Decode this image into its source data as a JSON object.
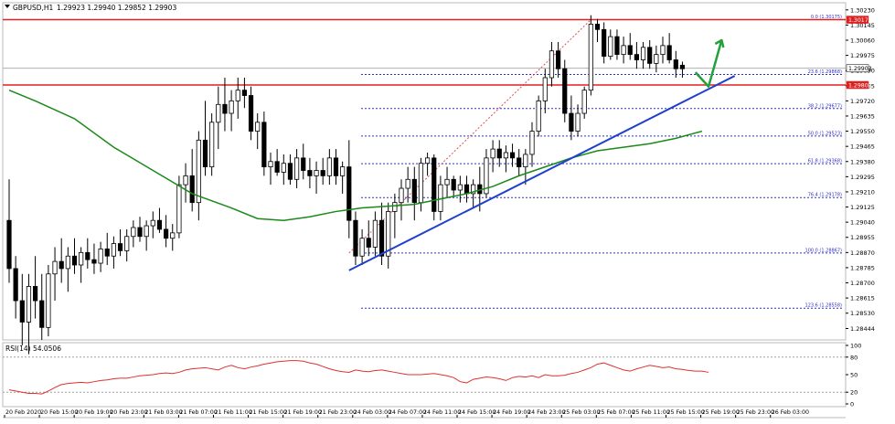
{
  "header": {
    "symbol": "GBPUSD,H1",
    "ohlc": "1.29923 1.29940 1.29852 1.29903"
  },
  "rsi_label": "RSI(14) 54.0506",
  "colors": {
    "background": "#ffffff",
    "grid": "#b8b8b8",
    "candle": "#000000",
    "ma": "#1a8a1a",
    "trendline": "#1f3fcf",
    "resistance": "#e02020",
    "fib": "#3030c8",
    "fib_diag": "#e05050",
    "rsi": "#e03030",
    "arrow": "#22a03a",
    "price_tag": "#e02020"
  },
  "chart_data": {
    "type": "candlestick",
    "title": "GBPUSD,H1",
    "ylim": [
      1.2838,
      1.3027
    ],
    "y_ticks": [
      1.3023,
      1.30145,
      1.3006,
      1.29975,
      1.2989,
      1.29805,
      1.2972,
      1.29635,
      1.2955,
      1.29465,
      1.2938,
      1.29295,
      1.2921,
      1.29125,
      1.2904,
      1.28955,
      1.2887,
      1.28785,
      1.287,
      1.28615,
      1.2853,
      1.28444
    ],
    "y_tick_labels": [
      "1.30230",
      "1.30145",
      "1.30060",
      "1.29975",
      "1.29890",
      "1.29805",
      "1.29720",
      "1.29635",
      "1.29550",
      "1.29465",
      "1.29380",
      "1.29295",
      "1.29210",
      "1.29125",
      "1.29040",
      "1.28955",
      "1.28870",
      "1.28785",
      "1.28700",
      "1.28615",
      "1.28530",
      "1.28444"
    ],
    "x_tick_labels": [
      "20 Feb 2020",
      "20 Feb 15:00",
      "20 Feb 19:00",
      "20 Feb 23:00",
      "21 Feb 03:00",
      "21 Feb 07:00",
      "21 Feb 11:00",
      "21 Feb 15:00",
      "21 Feb 19:00",
      "21 Feb 23:00",
      "24 Feb 03:00",
      "24 Feb 07:00",
      "24 Feb 11:00",
      "24 Feb 15:00",
      "24 Feb 19:00",
      "24 Feb 23:00",
      "25 Feb 03:00",
      "25 Feb 07:00",
      "25 Feb 11:00",
      "25 Feb 15:00",
      "25 Feb 19:00",
      "25 Feb 23:00",
      "26 Feb 03:00"
    ],
    "candles": [
      {
        "o": 1.2905,
        "h": 1.2928,
        "l": 1.287,
        "c": 1.2878
      },
      {
        "o": 1.2878,
        "h": 1.2885,
        "l": 1.285,
        "c": 1.286
      },
      {
        "o": 1.286,
        "h": 1.2875,
        "l": 1.2835,
        "c": 1.2848
      },
      {
        "o": 1.2848,
        "h": 1.2875,
        "l": 1.283,
        "c": 1.2868
      },
      {
        "o": 1.2868,
        "h": 1.2885,
        "l": 1.285,
        "c": 1.286
      },
      {
        "o": 1.286,
        "h": 1.2875,
        "l": 1.2838,
        "c": 1.2845
      },
      {
        "o": 1.2845,
        "h": 1.288,
        "l": 1.284,
        "c": 1.2875
      },
      {
        "o": 1.2875,
        "h": 1.289,
        "l": 1.286,
        "c": 1.2882
      },
      {
        "o": 1.2882,
        "h": 1.2895,
        "l": 1.287,
        "c": 1.2878
      },
      {
        "o": 1.2878,
        "h": 1.289,
        "l": 1.2865,
        "c": 1.2885
      },
      {
        "o": 1.2885,
        "h": 1.2895,
        "l": 1.2875,
        "c": 1.288
      },
      {
        "o": 1.288,
        "h": 1.289,
        "l": 1.287,
        "c": 1.2887
      },
      {
        "o": 1.2887,
        "h": 1.2895,
        "l": 1.2878,
        "c": 1.2883
      },
      {
        "o": 1.2883,
        "h": 1.2892,
        "l": 1.2875,
        "c": 1.2881
      },
      {
        "o": 1.2881,
        "h": 1.2893,
        "l": 1.2876,
        "c": 1.2889
      },
      {
        "o": 1.2889,
        "h": 1.2898,
        "l": 1.288,
        "c": 1.2885
      },
      {
        "o": 1.2885,
        "h": 1.2896,
        "l": 1.2878,
        "c": 1.2892
      },
      {
        "o": 1.2892,
        "h": 1.29,
        "l": 1.2885,
        "c": 1.2888
      },
      {
        "o": 1.2888,
        "h": 1.29,
        "l": 1.2882,
        "c": 1.2896
      },
      {
        "o": 1.2896,
        "h": 1.2905,
        "l": 1.289,
        "c": 1.2901
      },
      {
        "o": 1.2901,
        "h": 1.2907,
        "l": 1.2893,
        "c": 1.2896
      },
      {
        "o": 1.2896,
        "h": 1.2905,
        "l": 1.2888,
        "c": 1.2902
      },
      {
        "o": 1.2902,
        "h": 1.291,
        "l": 1.2895,
        "c": 1.2905
      },
      {
        "o": 1.2905,
        "h": 1.2912,
        "l": 1.2898,
        "c": 1.29
      },
      {
        "o": 1.29,
        "h": 1.2908,
        "l": 1.289,
        "c": 1.2895
      },
      {
        "o": 1.2895,
        "h": 1.2903,
        "l": 1.2888,
        "c": 1.2898
      },
      {
        "o": 1.2898,
        "h": 1.293,
        "l": 1.2895,
        "c": 1.2925
      },
      {
        "o": 1.2925,
        "h": 1.2937,
        "l": 1.2915,
        "c": 1.293
      },
      {
        "o": 1.293,
        "h": 1.2945,
        "l": 1.291,
        "c": 1.2915
      },
      {
        "o": 1.2915,
        "h": 1.2955,
        "l": 1.2905,
        "c": 1.295
      },
      {
        "o": 1.295,
        "h": 1.2972,
        "l": 1.293,
        "c": 1.2935
      },
      {
        "o": 1.2935,
        "h": 1.2965,
        "l": 1.293,
        "c": 1.296
      },
      {
        "o": 1.296,
        "h": 1.298,
        "l": 1.2945,
        "c": 1.297
      },
      {
        "o": 1.297,
        "h": 1.2985,
        "l": 1.2955,
        "c": 1.2965
      },
      {
        "o": 1.2965,
        "h": 1.2978,
        "l": 1.2955,
        "c": 1.2972
      },
      {
        "o": 1.2972,
        "h": 1.2985,
        "l": 1.2962,
        "c": 1.2978
      },
      {
        "o": 1.2978,
        "h": 1.2985,
        "l": 1.2968,
        "c": 1.2975
      },
      {
        "o": 1.2975,
        "h": 1.298,
        "l": 1.295,
        "c": 1.2955
      },
      {
        "o": 1.2955,
        "h": 1.2965,
        "l": 1.2945,
        "c": 1.296
      },
      {
        "o": 1.296,
        "h": 1.2966,
        "l": 1.293,
        "c": 1.2935
      },
      {
        "o": 1.2935,
        "h": 1.2943,
        "l": 1.2925,
        "c": 1.2938
      },
      {
        "o": 1.2938,
        "h": 1.2945,
        "l": 1.293,
        "c": 1.2932
      },
      {
        "o": 1.2932,
        "h": 1.2942,
        "l": 1.2925,
        "c": 1.2937
      },
      {
        "o": 1.2937,
        "h": 1.2942,
        "l": 1.2925,
        "c": 1.2928
      },
      {
        "o": 1.2928,
        "h": 1.2945,
        "l": 1.2923,
        "c": 1.294
      },
      {
        "o": 1.294,
        "h": 1.2948,
        "l": 1.2928,
        "c": 1.2933
      },
      {
        "o": 1.2933,
        "h": 1.294,
        "l": 1.2923,
        "c": 1.293
      },
      {
        "o": 1.293,
        "h": 1.2938,
        "l": 1.292,
        "c": 1.2933
      },
      {
        "o": 1.2933,
        "h": 1.294,
        "l": 1.2925,
        "c": 1.293
      },
      {
        "o": 1.293,
        "h": 1.2945,
        "l": 1.2925,
        "c": 1.294
      },
      {
        "o": 1.294,
        "h": 1.2945,
        "l": 1.2925,
        "c": 1.293
      },
      {
        "o": 1.293,
        "h": 1.2938,
        "l": 1.292,
        "c": 1.2935
      },
      {
        "o": 1.2935,
        "h": 1.295,
        "l": 1.2895,
        "c": 1.2905
      },
      {
        "o": 1.2905,
        "h": 1.291,
        "l": 1.288,
        "c": 1.2885
      },
      {
        "o": 1.2885,
        "h": 1.29,
        "l": 1.288,
        "c": 1.2895
      },
      {
        "o": 1.2895,
        "h": 1.2905,
        "l": 1.2885,
        "c": 1.289
      },
      {
        "o": 1.289,
        "h": 1.291,
        "l": 1.2885,
        "c": 1.2905
      },
      {
        "o": 1.2905,
        "h": 1.2915,
        "l": 1.288,
        "c": 1.2885
      },
      {
        "o": 1.2885,
        "h": 1.2915,
        "l": 1.2878,
        "c": 1.291
      },
      {
        "o": 1.291,
        "h": 1.292,
        "l": 1.2895,
        "c": 1.2915
      },
      {
        "o": 1.2915,
        "h": 1.2928,
        "l": 1.2905,
        "c": 1.2923
      },
      {
        "o": 1.2923,
        "h": 1.2935,
        "l": 1.2915,
        "c": 1.2928
      },
      {
        "o": 1.2928,
        "h": 1.2935,
        "l": 1.2905,
        "c": 1.2915
      },
      {
        "o": 1.2915,
        "h": 1.294,
        "l": 1.291,
        "c": 1.2937
      },
      {
        "o": 1.2937,
        "h": 1.2943,
        "l": 1.293,
        "c": 1.294
      },
      {
        "o": 1.294,
        "h": 1.2942,
        "l": 1.2905,
        "c": 1.291
      },
      {
        "o": 1.291,
        "h": 1.293,
        "l": 1.2905,
        "c": 1.2925
      },
      {
        "o": 1.2925,
        "h": 1.2935,
        "l": 1.2918,
        "c": 1.2928
      },
      {
        "o": 1.2928,
        "h": 1.293,
        "l": 1.2918,
        "c": 1.2922
      },
      {
        "o": 1.2922,
        "h": 1.293,
        "l": 1.2915,
        "c": 1.2925
      },
      {
        "o": 1.2925,
        "h": 1.293,
        "l": 1.2915,
        "c": 1.292
      },
      {
        "o": 1.292,
        "h": 1.2928,
        "l": 1.2912,
        "c": 1.2925
      },
      {
        "o": 1.2925,
        "h": 1.2935,
        "l": 1.291,
        "c": 1.292
      },
      {
        "o": 1.292,
        "h": 1.2945,
        "l": 1.2918,
        "c": 1.294
      },
      {
        "o": 1.294,
        "h": 1.295,
        "l": 1.2932,
        "c": 1.2945
      },
      {
        "o": 1.2945,
        "h": 1.295,
        "l": 1.2935,
        "c": 1.294
      },
      {
        "o": 1.294,
        "h": 1.2947,
        "l": 1.2932,
        "c": 1.2943
      },
      {
        "o": 1.2943,
        "h": 1.2948,
        "l": 1.2935,
        "c": 1.294
      },
      {
        "o": 1.294,
        "h": 1.2945,
        "l": 1.293,
        "c": 1.2935
      },
      {
        "o": 1.2935,
        "h": 1.2945,
        "l": 1.2925,
        "c": 1.2942
      },
      {
        "o": 1.2942,
        "h": 1.296,
        "l": 1.2935,
        "c": 1.2955
      },
      {
        "o": 1.2955,
        "h": 1.2975,
        "l": 1.2952,
        "c": 1.2972
      },
      {
        "o": 1.2972,
        "h": 1.299,
        "l": 1.2965,
        "c": 1.2985
      },
      {
        "o": 1.2985,
        "h": 1.3005,
        "l": 1.298,
        "c": 1.3
      },
      {
        "o": 1.3,
        "h": 1.3005,
        "l": 1.2985,
        "c": 1.299
      },
      {
        "o": 1.299,
        "h": 1.2995,
        "l": 1.296,
        "c": 1.2965
      },
      {
        "o": 1.2965,
        "h": 1.2975,
        "l": 1.295,
        "c": 1.2955
      },
      {
        "o": 1.2955,
        "h": 1.297,
        "l": 1.2952,
        "c": 1.2965
      },
      {
        "o": 1.2965,
        "h": 1.298,
        "l": 1.2962,
        "c": 1.2978
      },
      {
        "o": 1.2978,
        "h": 1.302,
        "l": 1.2975,
        "c": 1.3015
      },
      {
        "o": 1.3015,
        "h": 1.3018,
        "l": 1.3005,
        "c": 1.3012
      },
      {
        "o": 1.3012,
        "h": 1.3016,
        "l": 1.2993,
        "c": 1.2997
      },
      {
        "o": 1.2997,
        "h": 1.3012,
        "l": 1.2995,
        "c": 1.3008
      },
      {
        "o": 1.3008,
        "h": 1.3012,
        "l": 1.2995,
        "c": 1.2998
      },
      {
        "o": 1.2998,
        "h": 1.3008,
        "l": 1.2993,
        "c": 1.3003
      },
      {
        "o": 1.3003,
        "h": 1.301,
        "l": 1.2995,
        "c": 1.2998
      },
      {
        "o": 1.2998,
        "h": 1.3005,
        "l": 1.299,
        "c": 1.2995
      },
      {
        "o": 1.2995,
        "h": 1.3005,
        "l": 1.299,
        "c": 1.3002
      },
      {
        "o": 1.3002,
        "h": 1.3006,
        "l": 1.299,
        "c": 1.2993
      },
      {
        "o": 1.2993,
        "h": 1.3003,
        "l": 1.2988,
        "c": 1.2998
      },
      {
        "o": 1.2998,
        "h": 1.3008,
        "l": 1.2993,
        "c": 1.3003
      },
      {
        "o": 1.3003,
        "h": 1.301,
        "l": 1.2993,
        "c": 1.2995
      },
      {
        "o": 1.2995,
        "h": 1.3,
        "l": 1.2985,
        "c": 1.299
      },
      {
        "o": 1.2992,
        "h": 1.2994,
        "l": 1.2985,
        "c": 1.299
      }
    ],
    "moving_average": [
      [
        0,
        1.2978
      ],
      [
        4,
        1.2972
      ],
      [
        10,
        1.2962
      ],
      [
        16,
        1.2946
      ],
      [
        22,
        1.2933
      ],
      [
        28,
        1.292
      ],
      [
        34,
        1.2912
      ],
      [
        38,
        1.2906
      ],
      [
        42,
        1.2905
      ],
      [
        46,
        1.2907
      ],
      [
        50,
        1.291
      ],
      [
        54,
        1.2912
      ],
      [
        58,
        1.2913
      ],
      [
        62,
        1.2914
      ],
      [
        66,
        1.2917
      ],
      [
        70,
        1.292
      ],
      [
        74,
        1.2924
      ],
      [
        78,
        1.293
      ],
      [
        82,
        1.2935
      ],
      [
        86,
        1.294
      ],
      [
        90,
        1.2944
      ],
      [
        94,
        1.2946
      ],
      [
        98,
        1.2948
      ],
      [
        102,
        1.2951
      ],
      [
        106,
        1.2955
      ]
    ],
    "trendline": {
      "from": [
        52,
        1.2877
      ],
      "to": [
        111,
        1.2986
      ]
    },
    "resistance_lines": [
      1.30175,
      1.29809
    ],
    "gray_line": 1.29903,
    "fib_levels": [
      {
        "label": "0.0",
        "ratio": 0.0,
        "value": 1.30175
      },
      {
        "label": "23.6",
        "ratio": 23.6,
        "value": 1.29868
      },
      {
        "label": "38.2",
        "ratio": 38.2,
        "value": 1.29677
      },
      {
        "label": "50.0",
        "ratio": 50.0,
        "value": 1.29523
      },
      {
        "label": "61.8",
        "ratio": 61.8,
        "value": 1.29368
      },
      {
        "label": "76.4",
        "ratio": 76.4,
        "value": 1.29178
      },
      {
        "label": "100.0",
        "ratio": 100.0,
        "value": 1.28867
      },
      {
        "label": "123.6",
        "ratio": 123.6,
        "value": 1.28558
      }
    ],
    "fib_anchor": {
      "from_index": 52,
      "to_index": 89
    },
    "price_tags": [
      "1.30175",
      "1.29903",
      "1.29809"
    ],
    "arrow": {
      "down_from": [
        105,
        1.2988
      ],
      "down_to": [
        107,
        1.298
      ],
      "up_to": [
        109,
        1.3006
      ]
    },
    "rsi": {
      "ylim": [
        0,
        100
      ],
      "ticks": [
        100,
        80,
        50,
        20,
        0
      ],
      "levels": [
        80,
        20
      ],
      "values": [
        24,
        22,
        20,
        18,
        18,
        17,
        22,
        28,
        33,
        35,
        36,
        37,
        36,
        38,
        40,
        41,
        43,
        44,
        44,
        46,
        48,
        49,
        50,
        52,
        53,
        52,
        54,
        58,
        60,
        61,
        62,
        60,
        58,
        63,
        66,
        62,
        60,
        63,
        65,
        68,
        70,
        72,
        73,
        74,
        74,
        73,
        70,
        68,
        64,
        60,
        57,
        55,
        54,
        58,
        56,
        55,
        57,
        58,
        56,
        54,
        52,
        50,
        50,
        50,
        51,
        52,
        50,
        48,
        45,
        38,
        36,
        42,
        44,
        46,
        45,
        43,
        40,
        45,
        47,
        46,
        48,
        45,
        50,
        48,
        48,
        49,
        52,
        54,
        58,
        62,
        68,
        70,
        66,
        62,
        58,
        56,
        60,
        63,
        66,
        64,
        62,
        63,
        60,
        59,
        57,
        56,
        56,
        54
      ]
    }
  }
}
